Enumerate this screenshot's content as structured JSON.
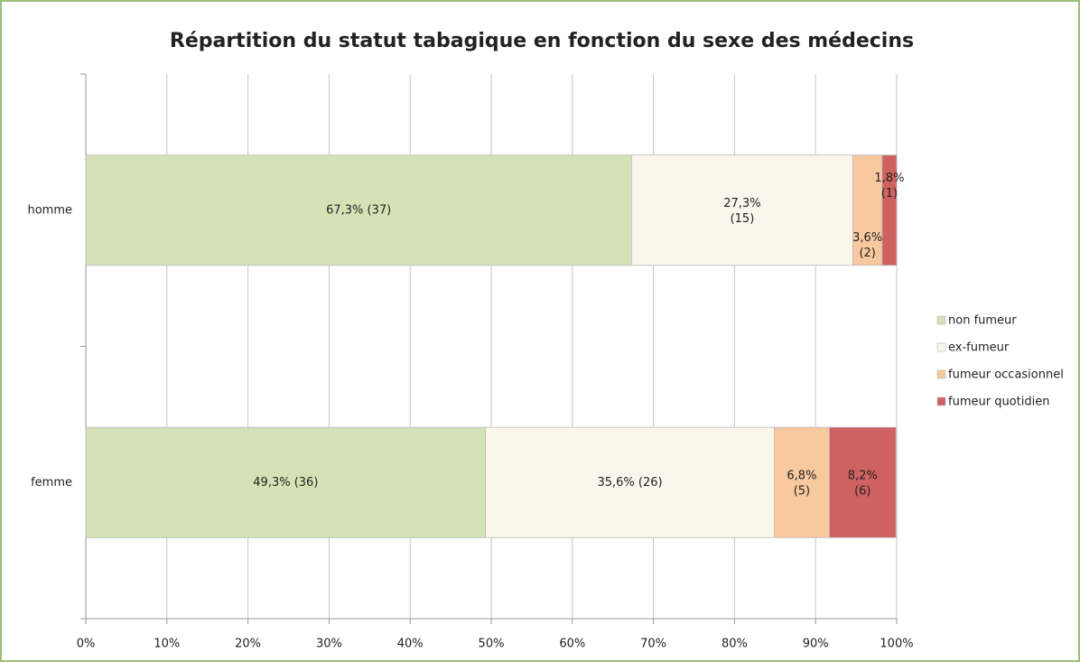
{
  "chart_data": {
    "type": "bar",
    "orientation": "horizontal",
    "stacked": true,
    "title": "Répartition du statut tabagique en fonction du sexe des médecins",
    "categories": [
      "homme",
      "femme"
    ],
    "series": [
      {
        "name": "non fumeur",
        "color": "#d3e3b6",
        "values": [
          67.3,
          49.3
        ],
        "value_labels": [
          "67,3% (37)",
          "49,3% (36)"
        ]
      },
      {
        "name": "ex-fumeur",
        "color": "#fbf6ec",
        "values": [
          27.3,
          35.6
        ],
        "value_labels": [
          "27,3% (15)",
          "35,6% (26)"
        ]
      },
      {
        "name": "fumeur occasionnel",
        "color": "#f8c89e",
        "values": [
          3.6,
          6.8
        ],
        "value_labels": [
          "3,6% (2)",
          "6,8% (5)"
        ]
      },
      {
        "name": "fumeur quotidien",
        "color": "#d06161",
        "values": [
          1.8,
          8.2
        ],
        "value_labels": [
          "1,8% (1)",
          "8,2% (6)"
        ]
      }
    ],
    "xlim": [
      0,
      100
    ],
    "xticks": [
      {
        "value": 0,
        "label": "0%"
      },
      {
        "value": 10,
        "label": "10%"
      },
      {
        "value": 20,
        "label": "20%"
      },
      {
        "value": 30,
        "label": "30%"
      },
      {
        "value": 40,
        "label": "40%"
      },
      {
        "value": 50,
        "label": "50%"
      },
      {
        "value": 60,
        "label": "60%"
      },
      {
        "value": 70,
        "label": "70%"
      },
      {
        "value": 80,
        "label": "80%"
      },
      {
        "value": 90,
        "label": "90%"
      },
      {
        "value": 100,
        "label": "100%"
      }
    ],
    "grid": true,
    "legend": "right"
  }
}
